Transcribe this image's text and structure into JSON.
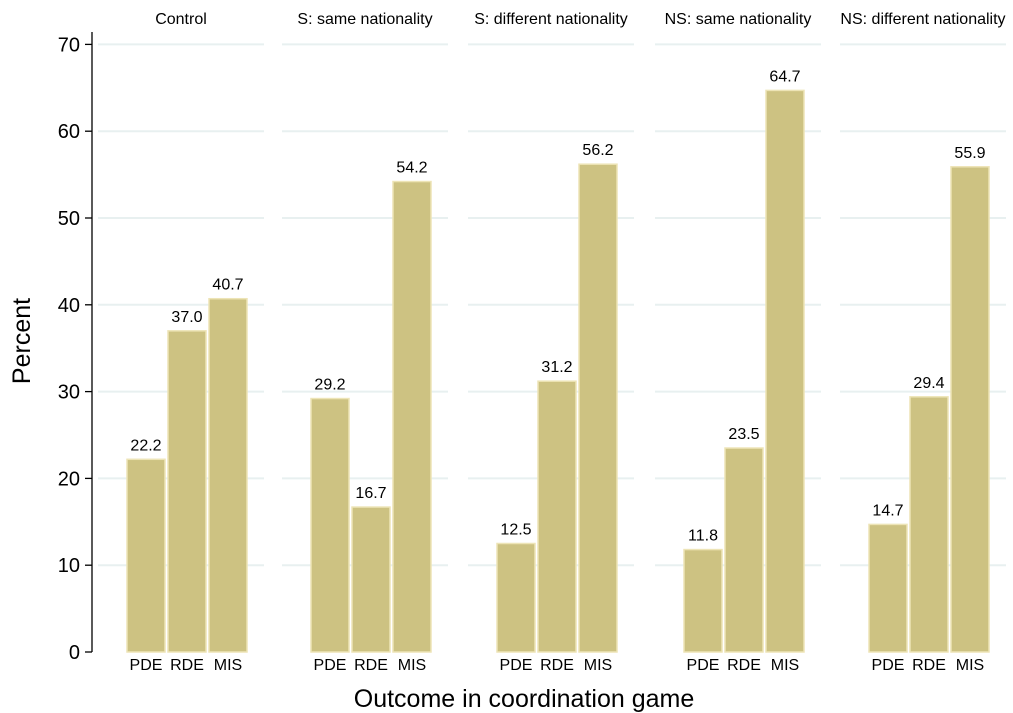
{
  "chart_data": {
    "type": "bar",
    "ylabel": "Percent",
    "xlabel": "Outcome in coordination game",
    "ylim": [
      0,
      70
    ],
    "yticks": [
      0,
      10,
      20,
      30,
      40,
      50,
      60,
      70
    ],
    "categories": [
      "PDE",
      "RDE",
      "MIS"
    ],
    "grid": true,
    "bar_color": "#cdc282",
    "bar_edge_color": "#ede4b6",
    "grid_color": "#e8f0f0",
    "panels": [
      {
        "title": "Control",
        "values": [
          22.2,
          37.0,
          40.7
        ],
        "labels": [
          "22.2",
          "37.0",
          "40.7"
        ]
      },
      {
        "title": "S: same nationality",
        "values": [
          29.2,
          16.7,
          54.2
        ],
        "labels": [
          "29.2",
          "16.7",
          "54.2"
        ]
      },
      {
        "title": "S: different nationality",
        "values": [
          12.5,
          31.2,
          56.2
        ],
        "labels": [
          "12.5",
          "31.2",
          "56.2"
        ]
      },
      {
        "title": "NS: same nationality",
        "values": [
          11.8,
          23.5,
          64.7
        ],
        "labels": [
          "11.8",
          "23.5",
          "64.7"
        ]
      },
      {
        "title": "NS: different nationality",
        "values": [
          14.7,
          29.4,
          55.9
        ],
        "labels": [
          "14.7",
          "29.4",
          "55.9"
        ]
      }
    ]
  }
}
